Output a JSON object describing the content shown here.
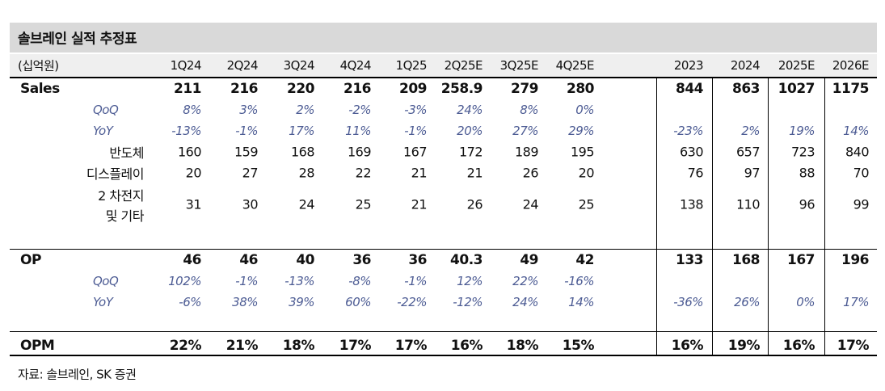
{
  "header": {
    "title": "솔브레인 실적 추정표",
    "unit": "(십억원)",
    "quarters": [
      "1Q24",
      "2Q24",
      "3Q24",
      "4Q24",
      "1Q25",
      "2Q25E",
      "3Q25E",
      "4Q25E"
    ],
    "years": [
      "2023",
      "2024",
      "2025E",
      "2026E"
    ]
  },
  "sections": [
    {
      "total": {
        "label": "Sales",
        "quarterly": [
          211,
          216,
          220,
          216,
          209,
          258.9,
          279,
          280
        ],
        "annual": [
          844,
          863,
          1027,
          1175
        ]
      },
      "growth": [
        {
          "label": "QoQ",
          "quarterly": [
            "8%",
            "3%",
            "2%",
            "-2%",
            "-3%",
            "24%",
            "8%",
            "0%"
          ]
        },
        {
          "label": "YoY",
          "quarterly": [
            "-13%",
            "-1%",
            "17%",
            "11%",
            "-1%",
            "20%",
            "27%",
            "29%"
          ],
          "annual": [
            "-23%",
            "2%",
            "19%",
            "14%"
          ]
        }
      ],
      "segments": [
        {
          "label_lines": [
            "반도체"
          ],
          "quarterly": [
            160,
            159,
            168,
            169,
            167,
            172,
            189,
            195
          ],
          "annual": [
            630,
            657,
            723,
            840
          ]
        },
        {
          "label_lines": [
            "디스플레이"
          ],
          "quarterly": [
            20,
            27,
            28,
            22,
            21,
            21,
            26,
            20
          ],
          "annual": [
            76,
            97,
            88,
            70
          ]
        },
        {
          "label_lines": [
            "2 차전지",
            "및 기타"
          ],
          "quarterly": [
            31,
            30,
            24,
            25,
            21,
            26,
            24,
            25
          ],
          "annual": [
            138,
            110,
            96,
            99
          ]
        }
      ]
    },
    {
      "total": {
        "label": "OP",
        "quarterly": [
          46,
          46,
          40,
          36,
          36,
          40.3,
          49,
          42
        ],
        "annual": [
          133,
          168,
          167,
          196
        ]
      },
      "growth": [
        {
          "label": "QoQ",
          "quarterly": [
            "102%",
            "-1%",
            "-13%",
            "-8%",
            "-1%",
            "12%",
            "22%",
            "-16%"
          ]
        },
        {
          "label": "YoY",
          "quarterly": [
            "-6%",
            "38%",
            "39%",
            "60%",
            "-22%",
            "-12%",
            "24%",
            "14%"
          ],
          "annual": [
            "-36%",
            "26%",
            "0%",
            "17%"
          ]
        }
      ]
    },
    {
      "total": {
        "label": "OPM",
        "quarterly": [
          "22%",
          "21%",
          "18%",
          "17%",
          "17%",
          "16%",
          "18%",
          "15%"
        ],
        "annual": [
          "16%",
          "19%",
          "16%",
          "17%"
        ]
      }
    }
  ],
  "source": "자료: 솔브레인, SK 증권"
}
